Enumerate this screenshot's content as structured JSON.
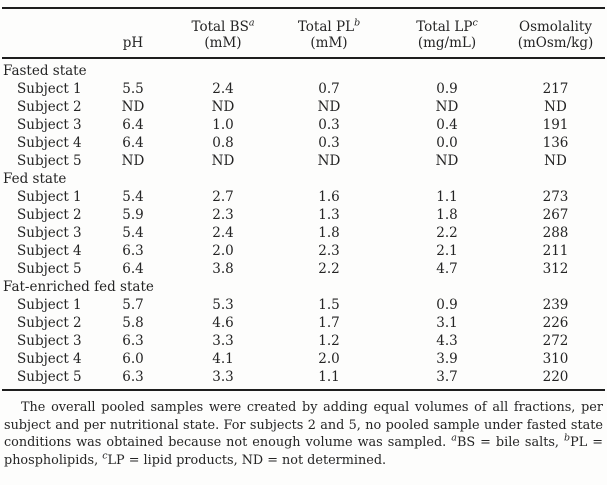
{
  "table": {
    "columns": [
      {
        "label": "",
        "sup": "",
        "sub": ""
      },
      {
        "label": "pH",
        "sup": "",
        "sub": ""
      },
      {
        "label": "Total BS",
        "sup": "a",
        "sub": "(mM)"
      },
      {
        "label": "Total PL",
        "sup": "b",
        "sub": "(mM)"
      },
      {
        "label": "Total LP",
        "sup": "c",
        "sub": "(mg/mL)"
      },
      {
        "label": "Osmolality",
        "sup": "",
        "sub": "(mOsm/kg)"
      }
    ],
    "sections": [
      {
        "title": "Fasted state",
        "rows": [
          {
            "label": "Subject 1",
            "values": [
              "5.5",
              "2.4",
              "0.7",
              "0.9",
              "217"
            ]
          },
          {
            "label": "Subject 2",
            "values": [
              "ND",
              "ND",
              "ND",
              "ND",
              "ND"
            ]
          },
          {
            "label": "Subject 3",
            "values": [
              "6.4",
              "1.0",
              "0.3",
              "0.4",
              "191"
            ]
          },
          {
            "label": "Subject 4",
            "values": [
              "6.4",
              "0.8",
              "0.3",
              "0.0",
              "136"
            ]
          },
          {
            "label": "Subject 5",
            "values": [
              "ND",
              "ND",
              "ND",
              "ND",
              "ND"
            ]
          }
        ]
      },
      {
        "title": "Fed state",
        "rows": [
          {
            "label": "Subject 1",
            "values": [
              "5.4",
              "2.7",
              "1.6",
              "1.1",
              "273"
            ]
          },
          {
            "label": "Subject 2",
            "values": [
              "5.9",
              "2.3",
              "1.3",
              "1.8",
              "267"
            ]
          },
          {
            "label": "Subject 3",
            "values": [
              "5.4",
              "2.4",
              "1.8",
              "2.2",
              "288"
            ]
          },
          {
            "label": "Subject 4",
            "values": [
              "6.3",
              "2.0",
              "2.3",
              "2.1",
              "211"
            ]
          },
          {
            "label": "Subject 5",
            "values": [
              "6.4",
              "3.8",
              "2.2",
              "4.7",
              "312"
            ]
          }
        ]
      },
      {
        "title": "Fat-enriched fed state",
        "rows": [
          {
            "label": "Subject 1",
            "values": [
              "5.7",
              "5.3",
              "1.5",
              "0.9",
              "239"
            ]
          },
          {
            "label": "Subject 2",
            "values": [
              "5.8",
              "4.6",
              "1.7",
              "3.1",
              "226"
            ]
          },
          {
            "label": "Subject 3",
            "values": [
              "6.3",
              "3.3",
              "1.2",
              "4.3",
              "272"
            ]
          },
          {
            "label": "Subject 4",
            "values": [
              "6.0",
              "4.1",
              "2.0",
              "3.9",
              "310"
            ]
          },
          {
            "label": "Subject 5",
            "values": [
              "6.3",
              "3.3",
              "1.1",
              "3.7",
              "220"
            ]
          }
        ]
      }
    ]
  },
  "footnote": {
    "lead": "The overall pooled samples were created by adding equal volumes of all fractions, per subject and per nutritional state. For subjects 2 and 5, no pooled sample under fasted state conditions was obtained because not enough volume was sampled. ",
    "sup_a": "a",
    "seg_a": "BS = bile salts, ",
    "sup_b": "b",
    "seg_b": "PL = phospholipids, ",
    "sup_c": "c",
    "seg_c": "LP = lipid products, ND = not determined."
  },
  "colors": {
    "text": "#242424",
    "rule": "#1e1e1e",
    "background": "#fdfdfc"
  }
}
